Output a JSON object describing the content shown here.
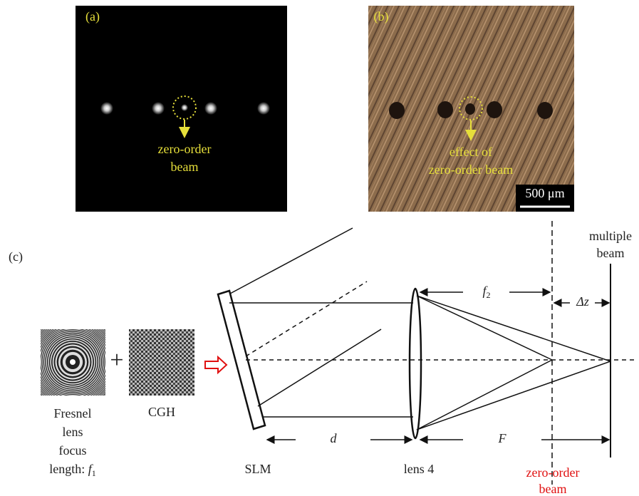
{
  "panel_a": {
    "label": "(a)",
    "annotation": [
      "zero-order",
      "beam"
    ]
  },
  "panel_b": {
    "label": "(b)",
    "annotation": [
      "effect of",
      "zero-order beam"
    ],
    "scale_bar": "500 μm"
  },
  "panel_c": {
    "label": "(c)",
    "fresnel_caption": [
      "Fresnel",
      "lens",
      "focus"
    ],
    "fresnel_length": {
      "text": "length:",
      "symbol": "f",
      "subscript": "1"
    },
    "plus": "+",
    "cgh_caption": "CGH",
    "multiple_beam": [
      "multiple",
      "beam"
    ],
    "f2": {
      "symbol": "f",
      "subscript": "2"
    },
    "delta_z": "Δz",
    "d": "d",
    "F": "F",
    "slm": "SLM",
    "lens": "lens 4",
    "zero_order": [
      "zero-order",
      "beam"
    ]
  }
}
